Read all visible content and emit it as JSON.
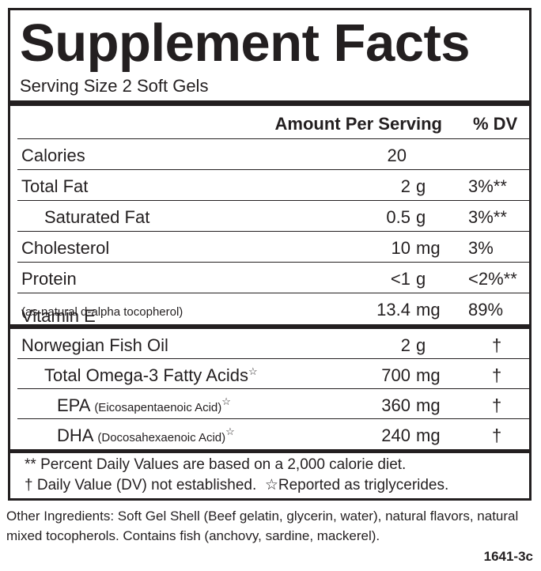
{
  "title": "Supplement Facts",
  "serving_size": "Serving Size 2 Soft Gels",
  "header": {
    "amount": "Amount Per Serving",
    "dv": "% DV"
  },
  "sections": [
    {
      "rows": [
        {
          "name": "Calories",
          "amount": "20"
        },
        {
          "name": "Total Fat",
          "amount": "2",
          "unit": "g",
          "dv": "3%**"
        },
        {
          "name": "Saturated Fat",
          "amount": "0.5",
          "unit": "g",
          "dv": "3%**"
        },
        {
          "name": "Cholesterol",
          "amount": "10",
          "unit": "mg",
          "dv": "3%"
        },
        {
          "name": "Protein",
          "amount": "<1",
          "unit": "g",
          "dv": "<2%**"
        },
        {
          "name": "Vitamin E",
          "note": "(as natural d-alpha tocopherol)",
          "amount": "13.4",
          "unit": "mg",
          "dv": "89%"
        }
      ]
    },
    {
      "rows": [
        {
          "name": "Norwegian Fish Oil",
          "amount": "2",
          "unit": "g",
          "dv": "†"
        },
        {
          "name": "Total Omega-3 Fatty Acids",
          "mark": "☆",
          "amount": "700",
          "unit": "mg",
          "dv": "†"
        },
        {
          "name": "EPA",
          "note": "(Eicosapentaenoic Acid)",
          "mark": "☆",
          "amount": "360",
          "unit": "mg",
          "dv": "†"
        },
        {
          "name": "DHA",
          "note": "(Docosahexaenoic Acid)",
          "mark": "☆",
          "amount": "240",
          "unit": "mg",
          "dv": "†"
        }
      ]
    }
  ],
  "footnotes": [
    "** Percent Daily Values are based on a 2,000 calorie diet.",
    "† Daily Value (DV) not established.",
    "☆Reported as triglycerides."
  ],
  "other_ingredients": "Other Ingredients: Soft Gel Shell (Beef gelatin, glycerin, water), natural flavors, natural mixed tocopherols. Contains fish (anchovy, sardine, mackerel).",
  "code": "1641-3c"
}
